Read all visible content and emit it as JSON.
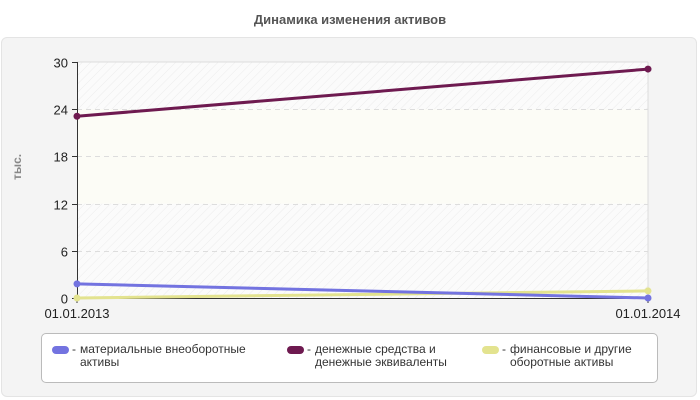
{
  "title": "Динамика изменения активов",
  "chart_data": {
    "type": "line",
    "title": "Динамика изменения активов",
    "xlabel": "",
    "ylabel": "тыс.",
    "x": [
      "01.01.2013",
      "01.01.2014"
    ],
    "ylim": [
      0,
      30
    ],
    "yticks": [
      0,
      6,
      12,
      18,
      24,
      30
    ],
    "grid": true,
    "legend_position": "bottom",
    "series": [
      {
        "name": "материальные внеоборотные активы",
        "color": "#7373e0",
        "values": [
          1.8,
          0.0
        ]
      },
      {
        "name": "денежные средства и денежные эквиваленты",
        "color": "#6e1a50",
        "values": [
          23.1,
          29.1
        ]
      },
      {
        "name": "финансовые и другие оборотные активы",
        "color": "#e3e38f",
        "values": [
          0.0,
          0.9
        ]
      }
    ]
  },
  "legend": [
    {
      "line1": "материальные внеоборотные",
      "line2": "активы",
      "color": "#7373e0"
    },
    {
      "line1": "денежные средства и",
      "line2": "денежные эквиваленты",
      "color": "#6e1a50"
    },
    {
      "line1": "финансовые и другие",
      "line2": "оборотные активы",
      "color": "#e3e38f"
    }
  ],
  "legend_dash": "-"
}
